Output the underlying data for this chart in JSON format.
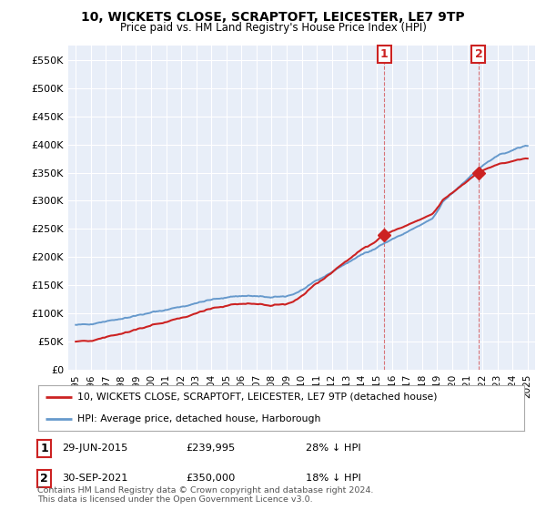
{
  "title": "10, WICKETS CLOSE, SCRAPTOFT, LEICESTER, LE7 9TP",
  "subtitle": "Price paid vs. HM Land Registry's House Price Index (HPI)",
  "background_color": "#ffffff",
  "plot_bg_color": "#e8eef8",
  "grid_color": "#ffffff",
  "sale1_date": "29-JUN-2015",
  "sale1_price": 239995,
  "sale1_pct": "28% ↓ HPI",
  "sale2_date": "30-SEP-2021",
  "sale2_price": 350000,
  "sale2_pct": "18% ↓ HPI",
  "legend_label_red": "10, WICKETS CLOSE, SCRAPTOFT, LEICESTER, LE7 9TP (detached house)",
  "legend_label_blue": "HPI: Average price, detached house, Harborough",
  "footer": "Contains HM Land Registry data © Crown copyright and database right 2024.\nThis data is licensed under the Open Government Licence v3.0.",
  "sale1_x": 2015.49,
  "sale2_x": 2021.75,
  "ylim_min": 0,
  "ylim_max": 575000,
  "xlim_min": 1994.5,
  "xlim_max": 2025.5,
  "yticks": [
    0,
    50000,
    100000,
    150000,
    200000,
    250000,
    300000,
    350000,
    400000,
    450000,
    500000,
    550000
  ],
  "yticklabels": [
    "£0",
    "£50K",
    "£100K",
    "£150K",
    "£200K",
    "£250K",
    "£300K",
    "£350K",
    "£400K",
    "£450K",
    "£500K",
    "£550K"
  ],
  "xticks": [
    1995,
    1996,
    1997,
    1998,
    1999,
    2000,
    2001,
    2002,
    2003,
    2004,
    2005,
    2006,
    2007,
    2008,
    2009,
    2010,
    2011,
    2012,
    2013,
    2014,
    2015,
    2016,
    2017,
    2018,
    2019,
    2020,
    2021,
    2022,
    2023,
    2024,
    2025
  ],
  "red_color": "#cc2222",
  "blue_color": "#6699cc"
}
